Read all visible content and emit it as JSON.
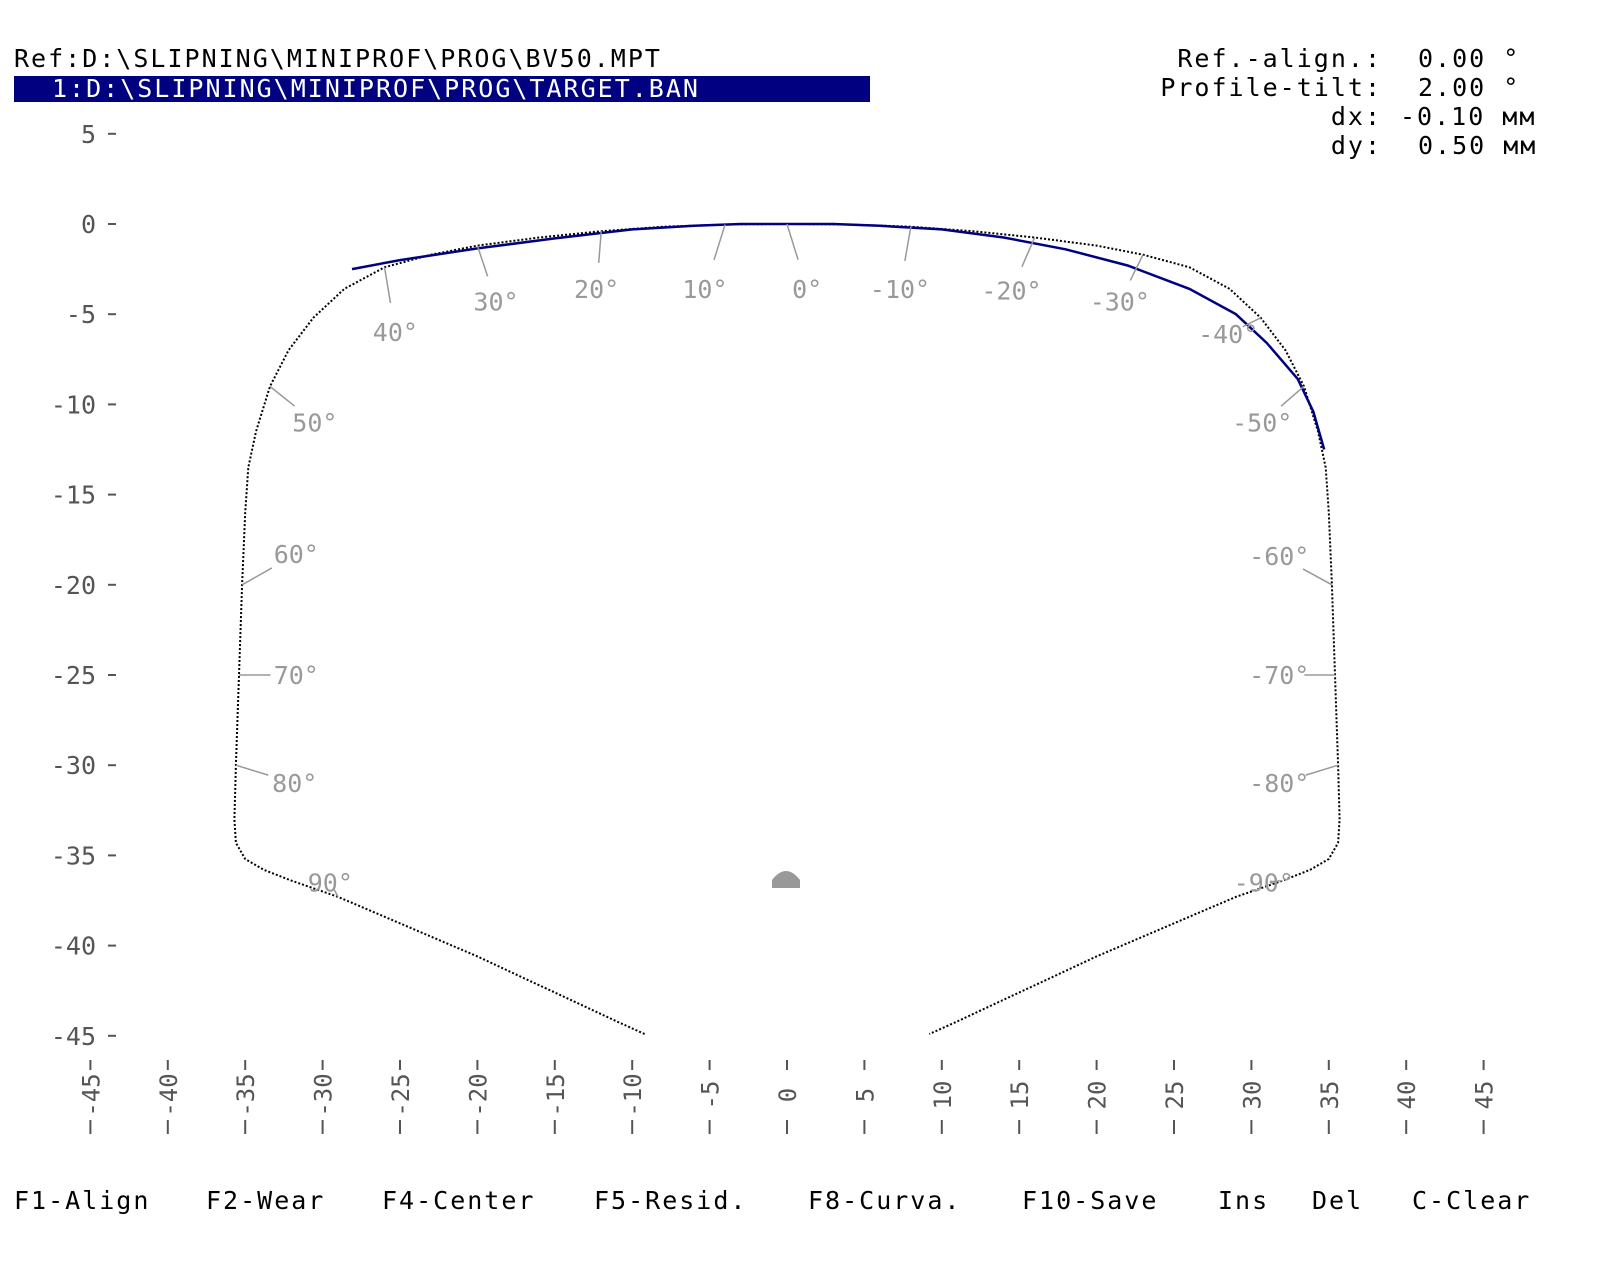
{
  "header": {
    "ref_path": "Ref:D:\\SLIPNING\\MINIPROF\\PROG\\BV50.MPT",
    "current_path": "1:D:\\SLIPNING\\MINIPROF\\PROG\\TARGET.BAN"
  },
  "params": [
    {
      "label": "Ref.-align.:",
      "value": "0.00 °"
    },
    {
      "label": "Profile-tilt:",
      "value": "2.00 °"
    },
    {
      "label": "dx:",
      "value": "-0.10 мм"
    },
    {
      "label": "dy:",
      "value": "0.50 мм"
    }
  ],
  "colors": {
    "profile": "#000080",
    "reference": "#000000",
    "angle": "#999999",
    "axis": "#555555"
  },
  "chart_data": {
    "type": "line",
    "x_ticks": [
      -45,
      -40,
      -35,
      -30,
      -25,
      -20,
      -15,
      -10,
      -5,
      0,
      5,
      10,
      15,
      20,
      25,
      30,
      35,
      40,
      45
    ],
    "y_ticks": [
      5,
      0,
      -5,
      -10,
      -15,
      -20,
      -25,
      -30,
      -35,
      -40,
      -45
    ],
    "xlim": [
      -45,
      45
    ],
    "ylim": [
      -45,
      5
    ],
    "reference_profile": [
      [
        -9.2,
        -44.9
      ],
      [
        -11,
        -44.2
      ],
      [
        -14,
        -43
      ],
      [
        -17,
        -41.8
      ],
      [
        -20,
        -40.6
      ],
      [
        -23,
        -39.5
      ],
      [
        -26,
        -38.4
      ],
      [
        -29,
        -37.3
      ],
      [
        -32,
        -36.4
      ],
      [
        -33.8,
        -35.8
      ],
      [
        -35,
        -35.2
      ],
      [
        -35.6,
        -34.3
      ],
      [
        -35.7,
        -33
      ],
      [
        -35.6,
        -30
      ],
      [
        -35.4,
        -25
      ],
      [
        -35.2,
        -20
      ],
      [
        -35,
        -16
      ],
      [
        -34.8,
        -13.5
      ],
      [
        -34.3,
        -11.5
      ],
      [
        -33.4,
        -9
      ],
      [
        -32.2,
        -7
      ],
      [
        -30.6,
        -5.2
      ],
      [
        -28.6,
        -3.6
      ],
      [
        -26,
        -2.4
      ],
      [
        -23,
        -1.7
      ],
      [
        -20,
        -1.2
      ],
      [
        -16,
        -0.75
      ],
      [
        -12,
        -0.4
      ],
      [
        -8,
        -0.15
      ],
      [
        -4,
        -0.03
      ],
      [
        0,
        0
      ],
      [
        4,
        -0.03
      ],
      [
        8,
        -0.15
      ],
      [
        12,
        -0.4
      ],
      [
        16,
        -0.75
      ],
      [
        20,
        -1.2
      ],
      [
        23,
        -1.7
      ],
      [
        26,
        -2.4
      ],
      [
        28.6,
        -3.6
      ],
      [
        30.6,
        -5.2
      ],
      [
        32.2,
        -7
      ],
      [
        33.4,
        -9
      ],
      [
        34.3,
        -11.5
      ],
      [
        34.8,
        -13.5
      ],
      [
        35,
        -16
      ],
      [
        35.2,
        -20
      ],
      [
        35.4,
        -25
      ],
      [
        35.6,
        -30
      ],
      [
        35.7,
        -33
      ],
      [
        35.6,
        -34.3
      ],
      [
        35,
        -35.2
      ],
      [
        33.8,
        -35.8
      ],
      [
        32,
        -36.4
      ],
      [
        29,
        -37.3
      ],
      [
        26,
        -38.4
      ],
      [
        23,
        -39.5
      ],
      [
        20,
        -40.6
      ],
      [
        17,
        -41.8
      ],
      [
        14,
        -43
      ],
      [
        11,
        -44.2
      ],
      [
        9.2,
        -44.9
      ]
    ],
    "measured_profile": [
      [
        -28.1,
        -2.5
      ],
      [
        -25,
        -2.0
      ],
      [
        -20,
        -1.35
      ],
      [
        -15,
        -0.8
      ],
      [
        -10,
        -0.3
      ],
      [
        -6,
        -0.1
      ],
      [
        -3,
        0
      ],
      [
        0,
        0
      ],
      [
        3,
        0
      ],
      [
        6,
        -0.1
      ],
      [
        10,
        -0.3
      ],
      [
        14,
        -0.75
      ],
      [
        18,
        -1.4
      ],
      [
        22,
        -2.3
      ],
      [
        26,
        -3.6
      ],
      [
        29,
        -5
      ],
      [
        31,
        -6.6
      ],
      [
        33,
        -8.6
      ],
      [
        34,
        -10.4
      ],
      [
        34.7,
        -12.5
      ]
    ],
    "angle_labels": [
      {
        "label": "40°",
        "x": -25.3,
        "y": -6.0
      },
      {
        "label": "30°",
        "x": -18.8,
        "y": -4.3
      },
      {
        "label": "20°",
        "x": -12.3,
        "y": -3.6
      },
      {
        "label": "10°",
        "x": -5.3,
        "y": -3.6
      },
      {
        "label": "0°",
        "x": 1.3,
        "y": -3.6
      },
      {
        "label": "-10°",
        "x": 7.3,
        "y": -3.6
      },
      {
        "label": "-20°",
        "x": 14.5,
        "y": -3.7
      },
      {
        "label": "-30°",
        "x": 21.5,
        "y": -4.3
      },
      {
        "label": "-40°",
        "x": 28.5,
        "y": -6.1
      },
      {
        "label": "50°",
        "x": -30.5,
        "y": -11.0
      },
      {
        "label": "-50°",
        "x": 30.7,
        "y": -11.0
      },
      {
        "label": "60°",
        "x": -31.7,
        "y": -18.3
      },
      {
        "label": "-60°",
        "x": 31.8,
        "y": -18.4
      },
      {
        "label": "70°",
        "x": -31.7,
        "y": -25.0
      },
      {
        "label": "-70°",
        "x": 31.8,
        "y": -25.0
      },
      {
        "label": "80°",
        "x": -31.8,
        "y": -31.0
      },
      {
        "label": "-80°",
        "x": 31.8,
        "y": -31.0
      },
      {
        "label": "90°",
        "x": -29.5,
        "y": -36.5
      },
      {
        "label": "-90°",
        "x": 30.8,
        "y": -36.5
      }
    ]
  },
  "fkeys": [
    "F1-Align",
    "F2-Wear",
    "F4-Center",
    "F5-Resid.",
    "F8-Curva.",
    "F10-Save",
    "Ins",
    "Del",
    "C-Clear"
  ]
}
